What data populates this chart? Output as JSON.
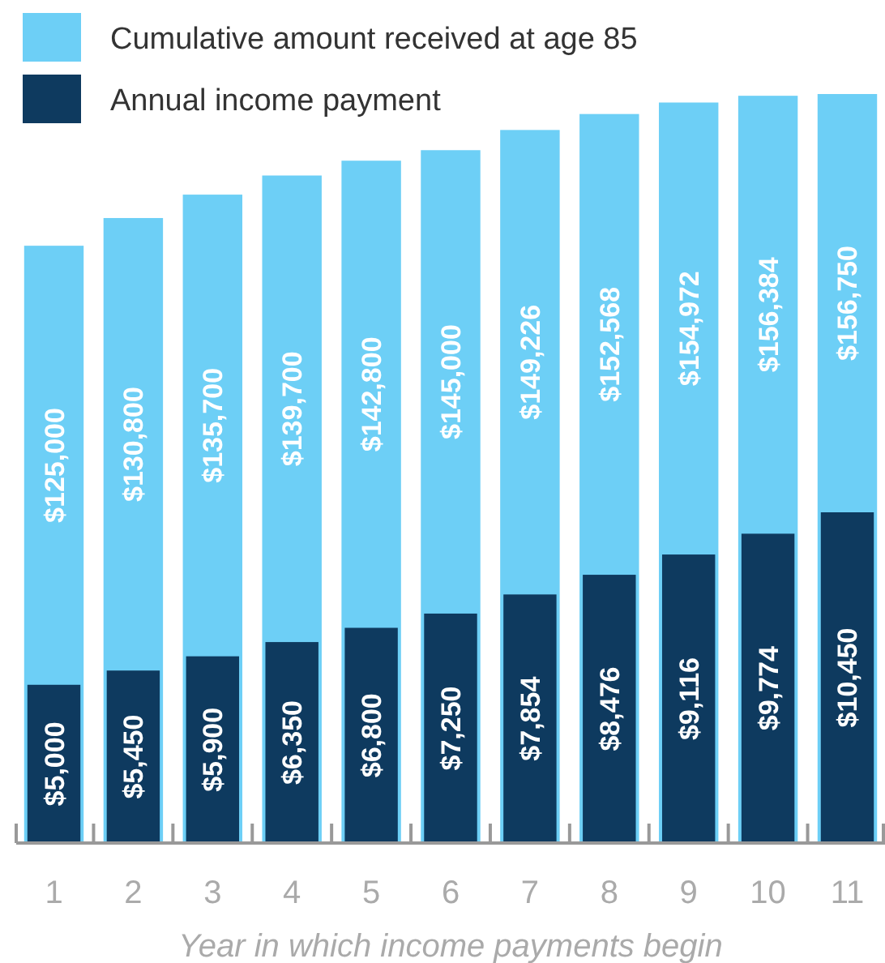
{
  "chart_data": {
    "type": "bar",
    "xlabel": "Year in which income payments begin",
    "categories": [
      "1",
      "2",
      "3",
      "4",
      "5",
      "6",
      "7",
      "8",
      "9",
      "10",
      "11"
    ],
    "series": [
      {
        "name": "Cumulative amount received at age 85",
        "color": "#6dcff6",
        "values": [
          125000,
          130800,
          135700,
          139700,
          142800,
          145000,
          149226,
          152568,
          154972,
          156384,
          156750
        ],
        "value_labels": [
          "$125,000",
          "$130,800",
          "$135,700",
          "$139,700",
          "$142,800",
          "$145,000",
          "$149,226",
          "$152,568",
          "$154,972",
          "$156,384",
          "$156,750"
        ]
      },
      {
        "name": "Annual income payment",
        "color": "#0e3a5f",
        "axis": "y2",
        "values": [
          5000,
          5450,
          5900,
          6350,
          6800,
          7250,
          7854,
          8476,
          9116,
          9774,
          10450
        ],
        "value_labels": [
          "$5,000",
          "$5,450",
          "$5,900",
          "$6,350",
          "$6,800",
          "$7,250",
          "$7,854",
          "$8,476",
          "$9,116",
          "$9,774",
          "$10,450"
        ]
      }
    ],
    "tick_labels": "x",
    "legend": "top left"
  }
}
